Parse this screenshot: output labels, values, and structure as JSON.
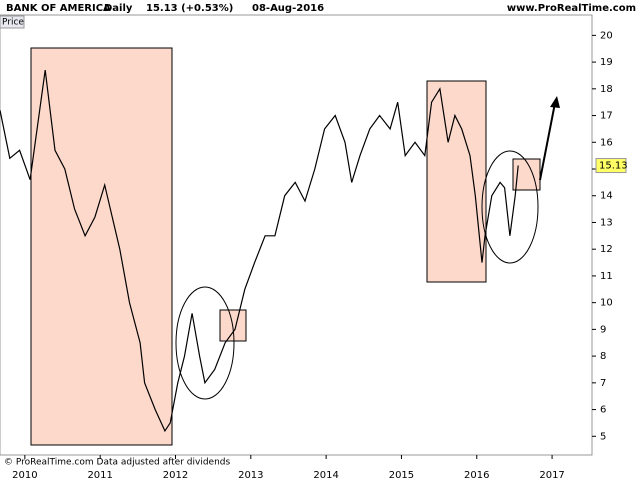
{
  "header": {
    "symbol": "BANK OF AMERICA",
    "period": "Daily",
    "quote": "15.13 (+0.53%)",
    "date": "08-Aug-2016",
    "site": "www.ProRealTime.com"
  },
  "footer": "© ProRealTime.com  Data adjusted after dividends",
  "chart_data": {
    "type": "line",
    "series": [
      {
        "name": "Price",
        "color": "#000000",
        "x": [
          2009.67,
          2009.8,
          2009.93,
          2010.07,
          2010.27,
          2010.4,
          2010.53,
          2010.66,
          2010.8,
          2010.93,
          2011.06,
          2011.26,
          2011.39,
          2011.53,
          2011.59,
          2011.73,
          2011.86,
          2011.93,
          2012.03,
          2012.12,
          2012.22,
          2012.32,
          2012.39,
          2012.52,
          2012.66,
          2012.79,
          2012.92,
          2013.05,
          2013.19,
          2013.32,
          2013.45,
          2013.59,
          2013.72,
          2013.85,
          2013.98,
          2014.12,
          2014.25,
          2014.34,
          2014.45,
          2014.58,
          2014.71,
          2014.85,
          2014.95,
          2015.05,
          2015.18,
          2015.31,
          2015.4,
          2015.51,
          2015.62,
          2015.71,
          2015.8,
          2015.91,
          2015.98,
          2016.07,
          2016.11,
          2016.2,
          2016.31,
          2016.37,
          2016.44,
          2016.51,
          2016.55
        ],
        "values": [
          17.2,
          15.4,
          15.7,
          14.6,
          18.7,
          15.7,
          15.0,
          13.5,
          12.5,
          13.2,
          14.4,
          12.0,
          10.0,
          8.5,
          7.0,
          6.0,
          5.2,
          5.5,
          7.0,
          8.0,
          9.6,
          8.0,
          7.0,
          7.5,
          8.5,
          9.0,
          10.5,
          11.5,
          12.5,
          12.5,
          14.0,
          14.5,
          13.8,
          15.0,
          16.5,
          17.0,
          16.0,
          14.5,
          15.5,
          16.5,
          17.0,
          16.5,
          17.5,
          15.5,
          16.0,
          15.5,
          17.5,
          18.0,
          16.0,
          17.0,
          16.5,
          15.5,
          14.0,
          11.5,
          12.5,
          14.0,
          14.5,
          14.3,
          12.5,
          14.0,
          15.13
        ]
      }
    ],
    "xlim": [
      2009.67,
      2017.53
    ],
    "xticks": [
      2010,
      2011,
      2012,
      2013,
      2014,
      2015,
      2016,
      2017
    ],
    "ylim": [
      4.3,
      20.5
    ],
    "yticks": [
      5,
      6,
      7,
      8,
      9,
      10,
      11,
      12,
      13,
      14,
      15,
      16,
      17,
      18,
      19,
      20
    ],
    "last_value_color": "#ffff66"
  }
}
